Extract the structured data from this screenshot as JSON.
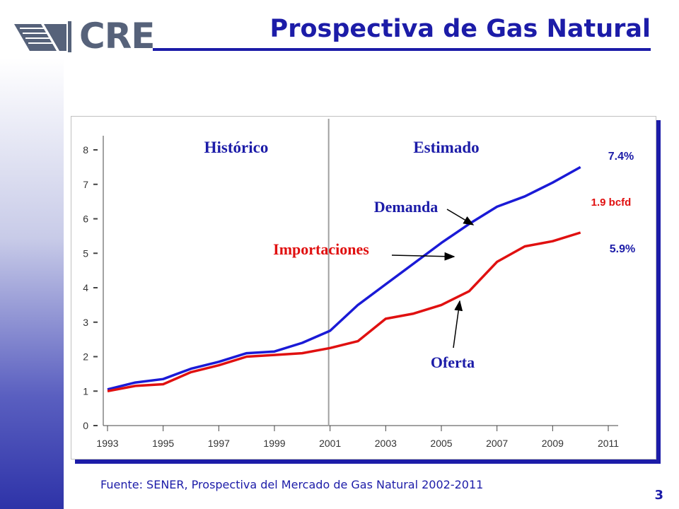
{
  "header": {
    "logo_text": "CRE",
    "title": "Prospectiva de Gas Natural"
  },
  "footer": {
    "source": "Fuente: SENER, Prospectiva del Mercado de Gas Natural 2002-2011",
    "page_number": "3"
  },
  "colors": {
    "brand_blue": "#1c1ca8",
    "demand_blue": "#1a1ad6",
    "supply_red": "#e01010"
  },
  "chart_data": {
    "type": "line",
    "title": "",
    "xlabel": "",
    "ylabel": "",
    "xlim": [
      1993,
      2011
    ],
    "ylim": [
      0,
      8
    ],
    "x_ticks": [
      1993,
      1995,
      1997,
      1999,
      2001,
      2003,
      2005,
      2007,
      2009,
      2011
    ],
    "y_ticks": [
      0,
      1,
      2,
      3,
      4,
      5,
      6,
      7,
      8
    ],
    "divider_x": 2001,
    "grid": false,
    "region_labels": [
      "Histórico",
      "Estimado"
    ],
    "series": [
      {
        "name": "Demanda",
        "color": "#1a1ad6",
        "growth_label": "7.4%",
        "points": [
          [
            1993,
            1.05
          ],
          [
            1994,
            1.25
          ],
          [
            1995,
            1.35
          ],
          [
            1996,
            1.65
          ],
          [
            1997,
            1.85
          ],
          [
            1998,
            2.1
          ],
          [
            1999,
            2.15
          ],
          [
            2000,
            2.4
          ],
          [
            2001,
            2.75
          ],
          [
            2002,
            3.5
          ],
          [
            2003,
            4.1
          ],
          [
            2004,
            4.7
          ],
          [
            2005,
            5.3
          ],
          [
            2006,
            5.85
          ],
          [
            2007,
            6.35
          ],
          [
            2008,
            6.65
          ],
          [
            2009,
            7.05
          ],
          [
            2010,
            7.5
          ]
        ]
      },
      {
        "name": "Oferta",
        "color": "#e01010",
        "growth_label": "5.9%",
        "points": [
          [
            1993,
            1.0
          ],
          [
            1994,
            1.15
          ],
          [
            1995,
            1.2
          ],
          [
            1996,
            1.55
          ],
          [
            1997,
            1.75
          ],
          [
            1998,
            2.0
          ],
          [
            1999,
            2.05
          ],
          [
            2000,
            2.1
          ],
          [
            2001,
            2.25
          ],
          [
            2002,
            2.45
          ],
          [
            2003,
            3.1
          ],
          [
            2004,
            3.25
          ],
          [
            2005,
            3.5
          ],
          [
            2006,
            3.9
          ],
          [
            2007,
            4.75
          ],
          [
            2008,
            5.2
          ],
          [
            2009,
            5.35
          ],
          [
            2010,
            5.6
          ]
        ]
      }
    ],
    "annotations": [
      {
        "id": "demanda",
        "text": "Demanda",
        "color": "#1c1ca8"
      },
      {
        "id": "importaciones",
        "text": "Importaciones",
        "color": "#e01010"
      },
      {
        "id": "oferta",
        "text": "Oferta",
        "color": "#1c1ca8"
      },
      {
        "id": "gap",
        "text": "1.9 bcfd",
        "color": "#e01010"
      }
    ]
  }
}
